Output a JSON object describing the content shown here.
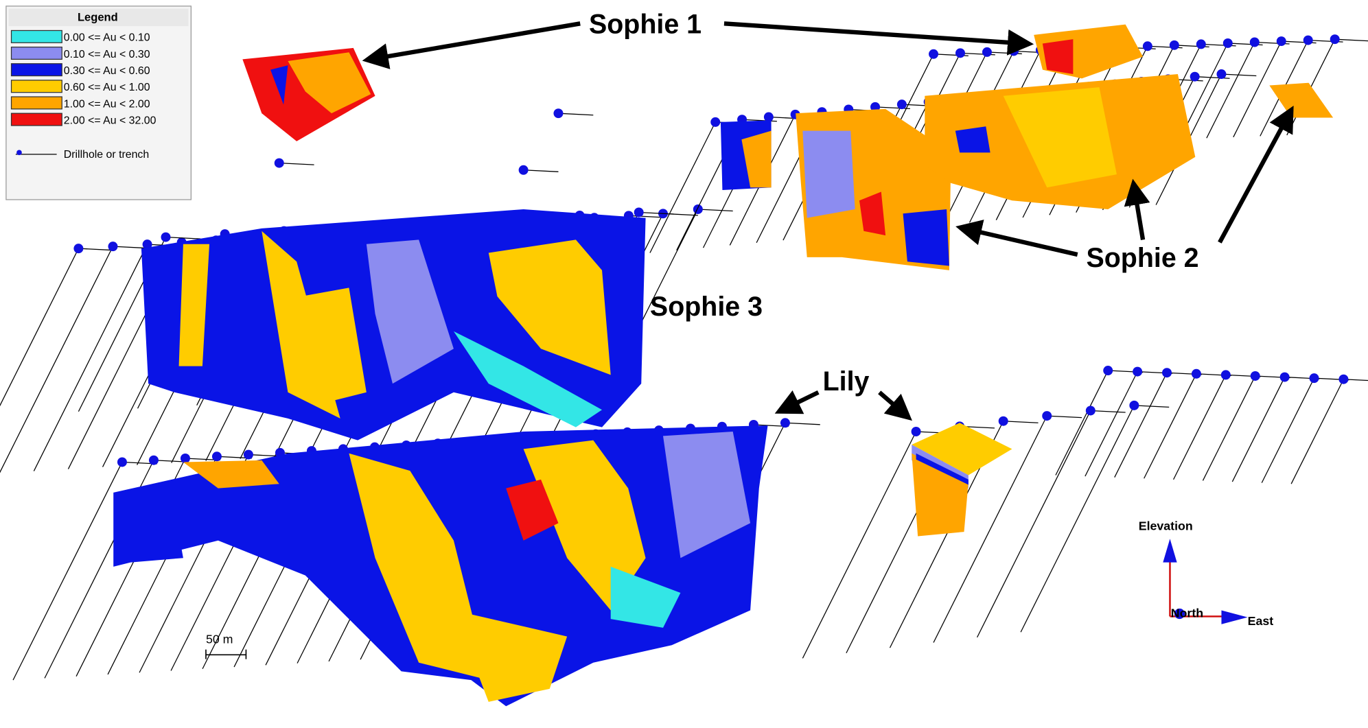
{
  "legend": {
    "title": "Legend",
    "entries": [
      {
        "label": "0.00 <= Au < 0.10",
        "color": "#33e6e6"
      },
      {
        "label": "0.10 <= Au < 0.30",
        "color": "#8c8cf0"
      },
      {
        "label": "0.30 <= Au < 0.60",
        "color": "#0a14e6"
      },
      {
        "label": "0.60 <= Au < 1.00",
        "color": "#ffcc00"
      },
      {
        "label": "1.00 <= Au < 2.00",
        "color": "#ffa500"
      },
      {
        "label": "2.00 <= Au < 32.00",
        "color": "#f01010"
      }
    ],
    "drillhole": "Drillhole or trench"
  },
  "annotations": {
    "sophie1": "Sophie 1",
    "sophie2": "Sophie 2",
    "sophie3": "Sophie 3",
    "lily": "Lily"
  },
  "scale_bar": "50 m",
  "axes": {
    "elevation": "Elevation",
    "north": "North",
    "east": "East"
  }
}
